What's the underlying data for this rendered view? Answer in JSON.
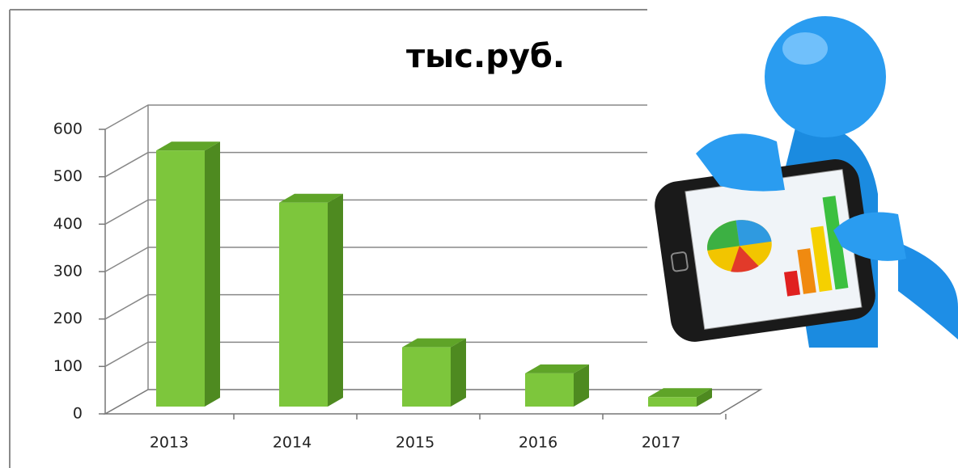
{
  "chart_data": {
    "type": "bar",
    "title": "тыс.руб.",
    "categories": [
      "2013",
      "2014",
      "2015",
      "2016",
      "2017"
    ],
    "values": [
      540,
      430,
      125,
      70,
      20
    ],
    "color": "#7dc63c",
    "ylim": [
      0,
      600
    ],
    "yticks": [
      0,
      100,
      200,
      300,
      400,
      500,
      600
    ],
    "grid": true
  }
}
